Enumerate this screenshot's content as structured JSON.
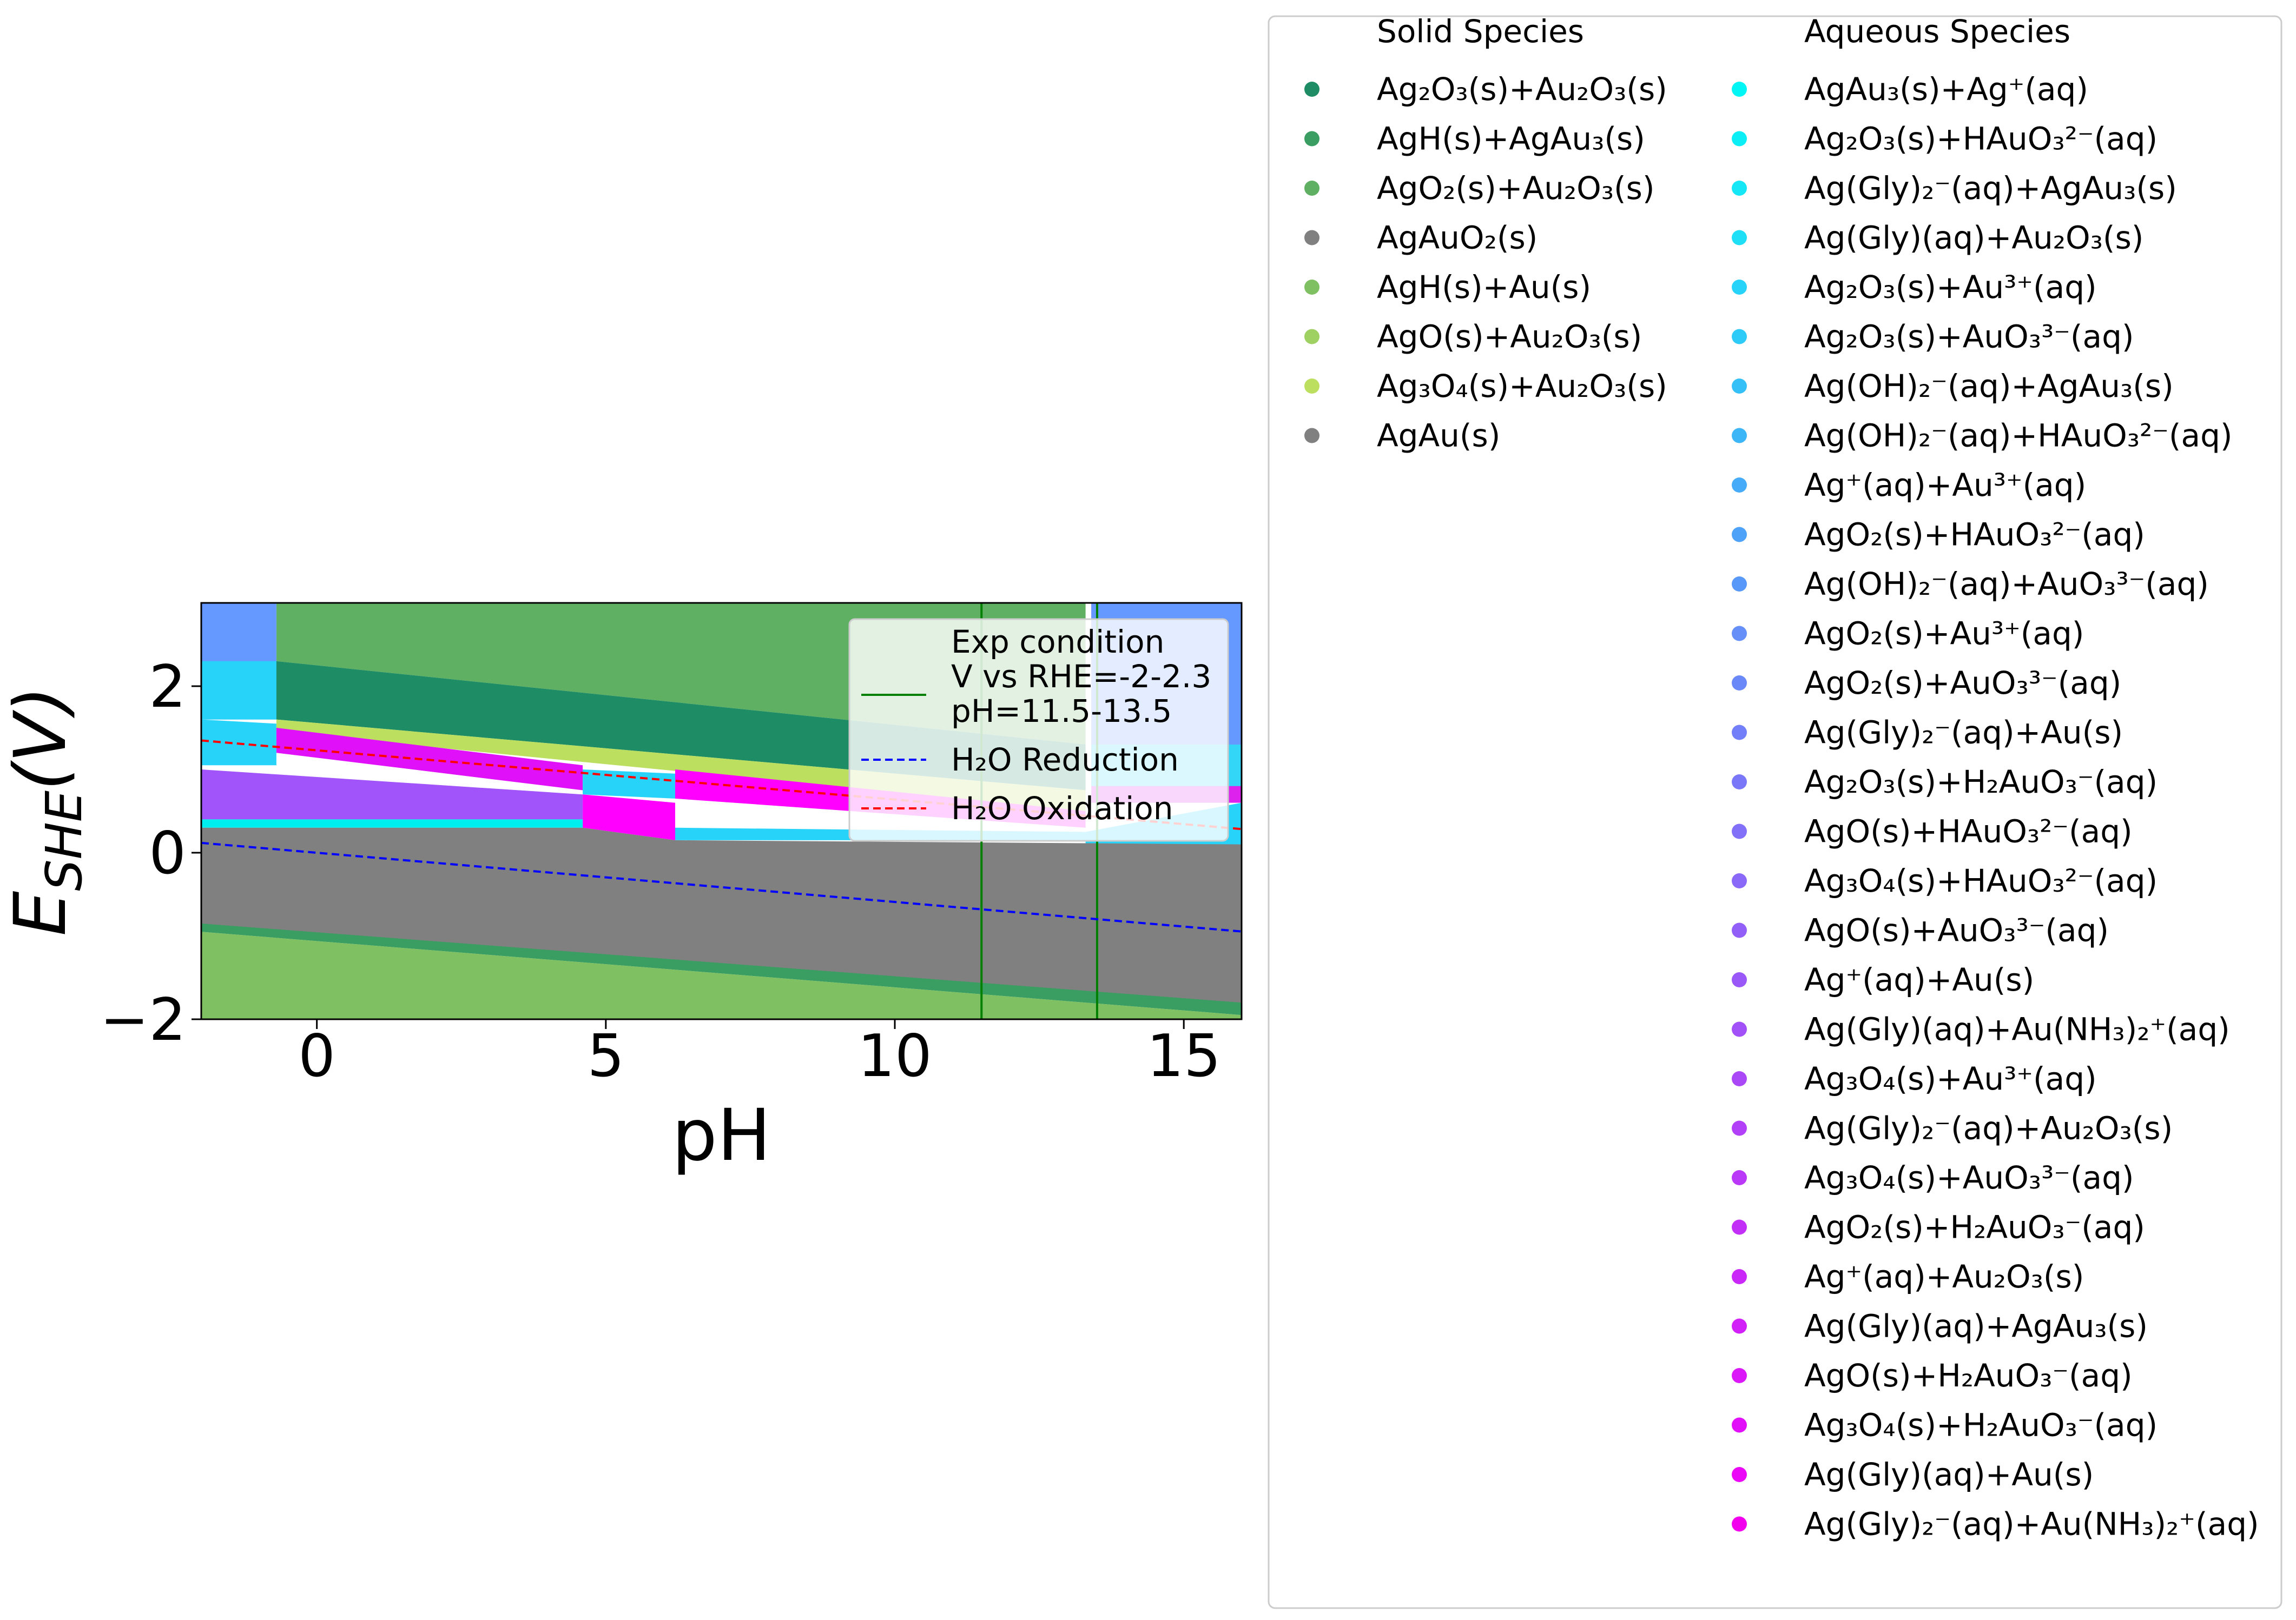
{
  "chart_data": {
    "type": "area",
    "title": "",
    "xlabel": "pH",
    "ylabel": "E_SHE(V)",
    "xlim": [
      -2,
      16
    ],
    "ylim": [
      -2,
      3
    ],
    "xticks": [
      0,
      5,
      10,
      15
    ],
    "xtick_labels": [
      "0",
      "5",
      "10",
      "15"
    ],
    "yticks": [
      -2,
      0,
      2
    ],
    "ytick_labels": [
      "−2",
      "0",
      "2"
    ],
    "grid": false,
    "regions": [
      {
        "name": "AgO2(s)+Au2O3(s)",
        "color": "#5fb062",
        "points": [
          [
            -0.7,
            3
          ],
          [
            13.3,
            3
          ],
          [
            13.3,
            1.3
          ],
          [
            -0.7,
            2.3
          ]
        ]
      },
      {
        "name": "Ag(Gly)2−(aq)+Au(s) / AgO2(s)+Au3+(aq)",
        "color": "#6699ff",
        "points": [
          [
            -2,
            3
          ],
          [
            -0.7,
            3
          ],
          [
            -0.7,
            1.6
          ],
          [
            -2,
            1.6
          ]
        ]
      },
      {
        "name": "Ag2O3(s)+Au3+(aq)",
        "color": "#28d3fa",
        "points": [
          [
            -2,
            2.3
          ],
          [
            -0.7,
            2.3
          ],
          [
            -0.7,
            1.6
          ],
          [
            -2,
            1.6
          ]
        ]
      },
      {
        "name": "Ag2O3(s)+Au3+(aq) lower",
        "color": "#28d3fa",
        "points": [
          [
            -2,
            1.6
          ],
          [
            -0.7,
            1.55
          ],
          [
            -0.7,
            1.05
          ],
          [
            -2,
            1.05
          ]
        ]
      },
      {
        "name": "AgO2(s)+H2AuO3−(aq)",
        "color": "#dd22ee",
        "points": [
          [
            13.4,
            3
          ],
          [
            16,
            3
          ],
          [
            16,
            0.6
          ],
          [
            13.4,
            0.6
          ]
        ]
      },
      {
        "name": "AgO2(s)+AuO3 3−(aq)",
        "color": "#6699ff",
        "points": [
          [
            13.4,
            3
          ],
          [
            16,
            3
          ],
          [
            16,
            1.3
          ],
          [
            13.4,
            1.3
          ]
        ]
      },
      {
        "name": "Ag(Gly)(aq)+Au(NH3)2+(aq)",
        "color": "#33d6f6",
        "points": [
          [
            13.4,
            1.3
          ],
          [
            16,
            1.3
          ],
          [
            16,
            0.8
          ],
          [
            13.4,
            0.8
          ]
        ]
      },
      {
        "name": "Ag2O3(s)+Au2O3(s)",
        "color": "#1e8c64",
        "points": [
          [
            -0.7,
            2.3
          ],
          [
            13.3,
            1.3
          ],
          [
            13.3,
            0.75
          ],
          [
            -0.7,
            1.6
          ]
        ]
      },
      {
        "name": "Ag3O4(s)+Au2O3(s)",
        "color": "#bddf60",
        "points": [
          [
            -0.7,
            1.6
          ],
          [
            13.3,
            0.75
          ],
          [
            13.3,
            0.5
          ],
          [
            -0.7,
            1.45
          ]
        ]
      },
      {
        "name": "Ag(Gly)(aq)+AgAu3(s)",
        "color": "#e010f8",
        "points": [
          [
            -0.7,
            1.5
          ],
          [
            4.6,
            1.05
          ],
          [
            4.6,
            0.75
          ],
          [
            -0.7,
            1.2
          ]
        ]
      },
      {
        "name": "Ag(Gly)2−(aq)+Au2O3(s)",
        "color": "#a054fa",
        "points": [
          [
            -2,
            1.0
          ],
          [
            4.6,
            0.7
          ],
          [
            4.6,
            0.4
          ],
          [
            -2,
            0.4
          ]
        ]
      },
      {
        "name": "Ag+(aq)+Au3+(aq)",
        "color": "#28d3fa",
        "points": [
          [
            4.6,
            1.0
          ],
          [
            6.2,
            0.95
          ],
          [
            6.2,
            0.65
          ],
          [
            4.6,
            0.7
          ]
        ]
      },
      {
        "name": "Ag(Gly)(aq)+Au(s)",
        "color": "#ff00ff",
        "points": [
          [
            4.6,
            0.7
          ],
          [
            6.2,
            0.6
          ],
          [
            6.2,
            0.15
          ],
          [
            4.6,
            0.3
          ]
        ]
      },
      {
        "name": "AgO(s)+H2AuO3−(aq)",
        "color": "#ff00ff",
        "points": [
          [
            6.2,
            1.0
          ],
          [
            13.3,
            0.5
          ],
          [
            13.3,
            0.3
          ],
          [
            6.2,
            0.65
          ]
        ]
      },
      {
        "name": "Ag(OH)2−(aq)+AgAu3(s)",
        "color": "#28d3fa",
        "points": [
          [
            6.2,
            0.3
          ],
          [
            13.3,
            0.25
          ],
          [
            13.3,
            0.15
          ],
          [
            6.2,
            0.15
          ]
        ]
      },
      {
        "name": "AgAu3(s)+Ag+(aq)",
        "color": "#00eeee",
        "points": [
          [
            -2,
            0.4
          ],
          [
            4.6,
            0.4
          ],
          [
            4.6,
            0.3
          ],
          [
            -2,
            0.3
          ]
        ]
      },
      {
        "name": "Ag(Gly)2−(aq)+Au(NH3)2+(aq) right",
        "color": "#28d3fa",
        "points": [
          [
            13.3,
            0.25
          ],
          [
            16,
            0.6
          ],
          [
            16,
            -0.15
          ],
          [
            13.3,
            0.1
          ]
        ]
      },
      {
        "name": "AgAu(s)",
        "color": "#808080",
        "points": [
          [
            -2,
            0.3
          ],
          [
            4.6,
            0.3
          ],
          [
            6.2,
            0.15
          ],
          [
            16,
            0.1
          ],
          [
            16,
            -1.9
          ],
          [
            -2,
            -0.9
          ]
        ]
      },
      {
        "name": "AgH(s)+AgAu3(s)",
        "color": "#3a9e62",
        "points": [
          [
            -2,
            -0.85
          ],
          [
            16,
            -1.8
          ],
          [
            16,
            -1.95
          ],
          [
            -2,
            -0.95
          ]
        ]
      },
      {
        "name": "AgH(s)+Au(s)",
        "color": "#7ec062",
        "points": [
          [
            -2,
            -0.95
          ],
          [
            16,
            -1.95
          ],
          [
            16,
            -2
          ],
          [
            -2,
            -2
          ]
        ]
      }
    ],
    "lines": [
      {
        "name": "Exp condition",
        "style": "solid",
        "color": "#008000",
        "points": [
          [
            11.5,
            -2
          ],
          [
            11.5,
            3
          ]
        ]
      },
      {
        "name": "Exp condition",
        "style": "solid",
        "color": "#008000",
        "points": [
          [
            13.5,
            -2
          ],
          [
            13.5,
            3
          ]
        ]
      },
      {
        "name": "H2O Reduction",
        "style": "dashed",
        "color": "#0000ff",
        "points": [
          [
            -2,
            0.118
          ],
          [
            16,
            -0.946
          ]
        ]
      },
      {
        "name": "H2O Oxidation",
        "style": "dashed",
        "color": "#ff0000",
        "points": [
          [
            -2,
            1.348
          ],
          [
            16,
            0.284
          ]
        ]
      }
    ],
    "inner_legend": {
      "placement": "upper right",
      "entries": [
        {
          "label": "Exp condition\nV vs RHE=-2-2.3\npH=11.5-13.5",
          "color": "#008000",
          "style": "solid"
        },
        {
          "label": "H₂O Reduction",
          "color": "#0000ff",
          "style": "dashed"
        },
        {
          "label": "H₂O Oxidation",
          "color": "#ff0000",
          "style": "dashed"
        }
      ]
    },
    "outer_legend": {
      "placement": "right",
      "solid_title": "Solid Species",
      "aqueous_title": "Aqueous Species",
      "solid": [
        {
          "label": "Ag₂O₃(s)+Au₂O₃(s)",
          "color": "#1e8c64"
        },
        {
          "label": "AgH(s)+AgAu₃(s)",
          "color": "#3a9e62"
        },
        {
          "label": "AgO₂(s)+Au₂O₃(s)",
          "color": "#5fb062"
        },
        {
          "label": "AgAuO₂(s)",
          "color": "#808080"
        },
        {
          "label": "AgH(s)+Au(s)",
          "color": "#7ec062"
        },
        {
          "label": "AgO(s)+Au₂O₃(s)",
          "color": "#9ed062"
        },
        {
          "label": "Ag₃O₄(s)+Au₂O₃(s)",
          "color": "#bddf60"
        },
        {
          "label": "AgAu(s)",
          "color": "#808080"
        }
      ],
      "aqueous": [
        {
          "label": "AgAu₃(s)+Ag⁺(aq)",
          "color": "#00f5f5"
        },
        {
          "label": "Ag₂O₃(s)+HAuO₃²⁻(aq)",
          "color": "#0beef5"
        },
        {
          "label": "Ag(Gly)₂⁻(aq)+AgAu₃(s)",
          "color": "#16e7f6"
        },
        {
          "label": "Ag(Gly)(aq)+Au₂O₃(s)",
          "color": "#1fdff7"
        },
        {
          "label": "Ag₂O₃(s)+Au³⁺(aq)",
          "color": "#28d3fa"
        },
        {
          "label": "Ag₂O₃(s)+AuO₃³⁻(aq)",
          "color": "#2fcbf8"
        },
        {
          "label": "Ag(OH)₂⁻(aq)+AgAu₃(s)",
          "color": "#36c0f8"
        },
        {
          "label": "Ag(OH)₂⁻(aq)+HAuO₃²⁻(aq)",
          "color": "#3db6f8"
        },
        {
          "label": "Ag⁺(aq)+Au³⁺(aq)",
          "color": "#46abf8"
        },
        {
          "label": "AgO₂(s)+HAuO₃²⁻(aq)",
          "color": "#4ea2f8"
        },
        {
          "label": "Ag(OH)₂⁻(aq)+AuO₃³⁻(aq)",
          "color": "#5898f8"
        },
        {
          "label": "AgO₂(s)+Au³⁺(aq)",
          "color": "#6690f8"
        },
        {
          "label": "AgO₂(s)+AuO₃³⁻(aq)",
          "color": "#6a88f8"
        },
        {
          "label": "Ag(Gly)₂⁻(aq)+Au(s)",
          "color": "#727ff8"
        },
        {
          "label": "Ag₂O₃(s)+H₂AuO₃⁻(aq)",
          "color": "#7a78f8"
        },
        {
          "label": "AgO(s)+HAuO₃²⁻(aq)",
          "color": "#8270f8"
        },
        {
          "label": "Ag₃O₄(s)+HAuO₃²⁻(aq)",
          "color": "#8a68f8"
        },
        {
          "label": "AgO(s)+AuO₃³⁻(aq)",
          "color": "#9260f8"
        },
        {
          "label": "Ag⁺(aq)+Au(s)",
          "color": "#9a58f8"
        },
        {
          "label": "Ag(Gly)(aq)+Au(NH₃)₂⁺(aq)",
          "color": "#a250f8"
        },
        {
          "label": "Ag₃O₄(s)+Au³⁺(aq)",
          "color": "#aa48f8"
        },
        {
          "label": "Ag(Gly)₂⁻(aq)+Au₂O₃(s)",
          "color": "#b240f8"
        },
        {
          "label": "Ag₃O₄(s)+AuO₃³⁻(aq)",
          "color": "#ba38f8"
        },
        {
          "label": "AgO₂(s)+H₂AuO₃⁻(aq)",
          "color": "#c230f8"
        },
        {
          "label": "Ag⁺(aq)+Au₂O₃(s)",
          "color": "#ca28f8"
        },
        {
          "label": "Ag(Gly)(aq)+AgAu₃(s)",
          "color": "#d220f8"
        },
        {
          "label": "AgO(s)+H₂AuO₃⁻(aq)",
          "color": "#da18f8"
        },
        {
          "label": "Ag₃O₄(s)+H₂AuO₃⁻(aq)",
          "color": "#e210f8"
        },
        {
          "label": "Ag(Gly)(aq)+Au(s)",
          "color": "#ea08f6"
        },
        {
          "label": "Ag(Gly)₂⁻(aq)+Au(NH₃)₂⁺(aq)",
          "color": "#f200ee"
        }
      ]
    }
  }
}
